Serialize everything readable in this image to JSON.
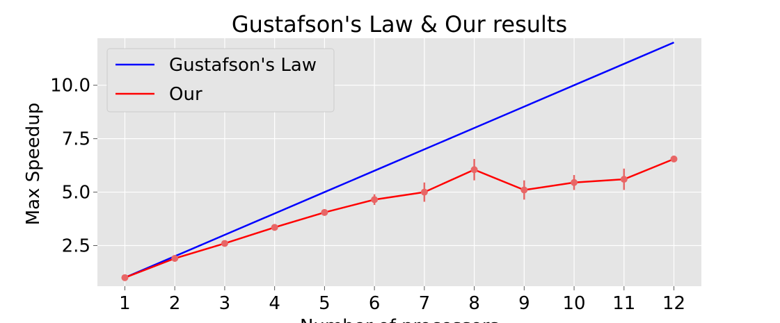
{
  "chart_data": {
    "type": "line",
    "title": "Gustafson's Law & Our results",
    "xlabel": "Number of processors",
    "ylabel": "Max Speedup",
    "x": [
      1,
      2,
      3,
      4,
      5,
      6,
      7,
      8,
      9,
      10,
      11,
      12
    ],
    "xlim": [
      0.45,
      12.55
    ],
    "ylim": [
      0.6,
      12.2
    ],
    "yticks": [
      2.5,
      5.0,
      7.5,
      10.0
    ],
    "ytick_labels": [
      "2.5",
      "5.0",
      "7.5",
      "10.0"
    ],
    "xtick_labels": [
      "1",
      "2",
      "3",
      "4",
      "5",
      "6",
      "7",
      "8",
      "9",
      "10",
      "11",
      "12"
    ],
    "grid": true,
    "background": "#e5e5e5",
    "legend_position": "upper-left",
    "series": [
      {
        "name": "Gustafson's Law",
        "color": "#0000ff",
        "values": [
          1,
          2,
          3,
          4,
          5,
          6,
          7,
          8,
          9,
          10,
          11,
          12
        ]
      },
      {
        "name": "Our",
        "color": "#ff0000",
        "marker_color": "#e86666",
        "values": [
          1.0,
          1.9,
          2.6,
          3.35,
          4.05,
          4.65,
          5.0,
          6.05,
          5.1,
          5.45,
          5.6,
          6.55
        ],
        "errors": [
          0.0,
          0.05,
          0.08,
          0.1,
          0.1,
          0.25,
          0.45,
          0.5,
          0.45,
          0.35,
          0.5,
          0.1
        ]
      }
    ]
  }
}
